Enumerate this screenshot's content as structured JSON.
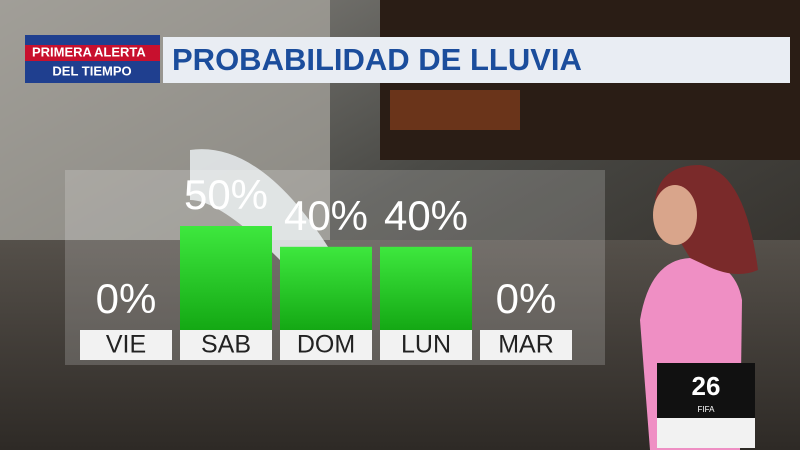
{
  "chart_data": {
    "type": "bar",
    "title": "PROBABILIDAD DE LLUVIA",
    "categories": [
      "VIE",
      "SAB",
      "DOM",
      "LUN",
      "MAR"
    ],
    "values": [
      0,
      50,
      40,
      40,
      0
    ],
    "value_labels": [
      "0%",
      "50%",
      "40%",
      "40%",
      "0%"
    ],
    "color": "#22cc22"
  },
  "logo": {
    "line1": "PRIMERA",
    "line2": "ALERTA",
    "line3": "DEL TIEMPO"
  },
  "badge": {
    "number": "26",
    "text": "FIFA"
  }
}
